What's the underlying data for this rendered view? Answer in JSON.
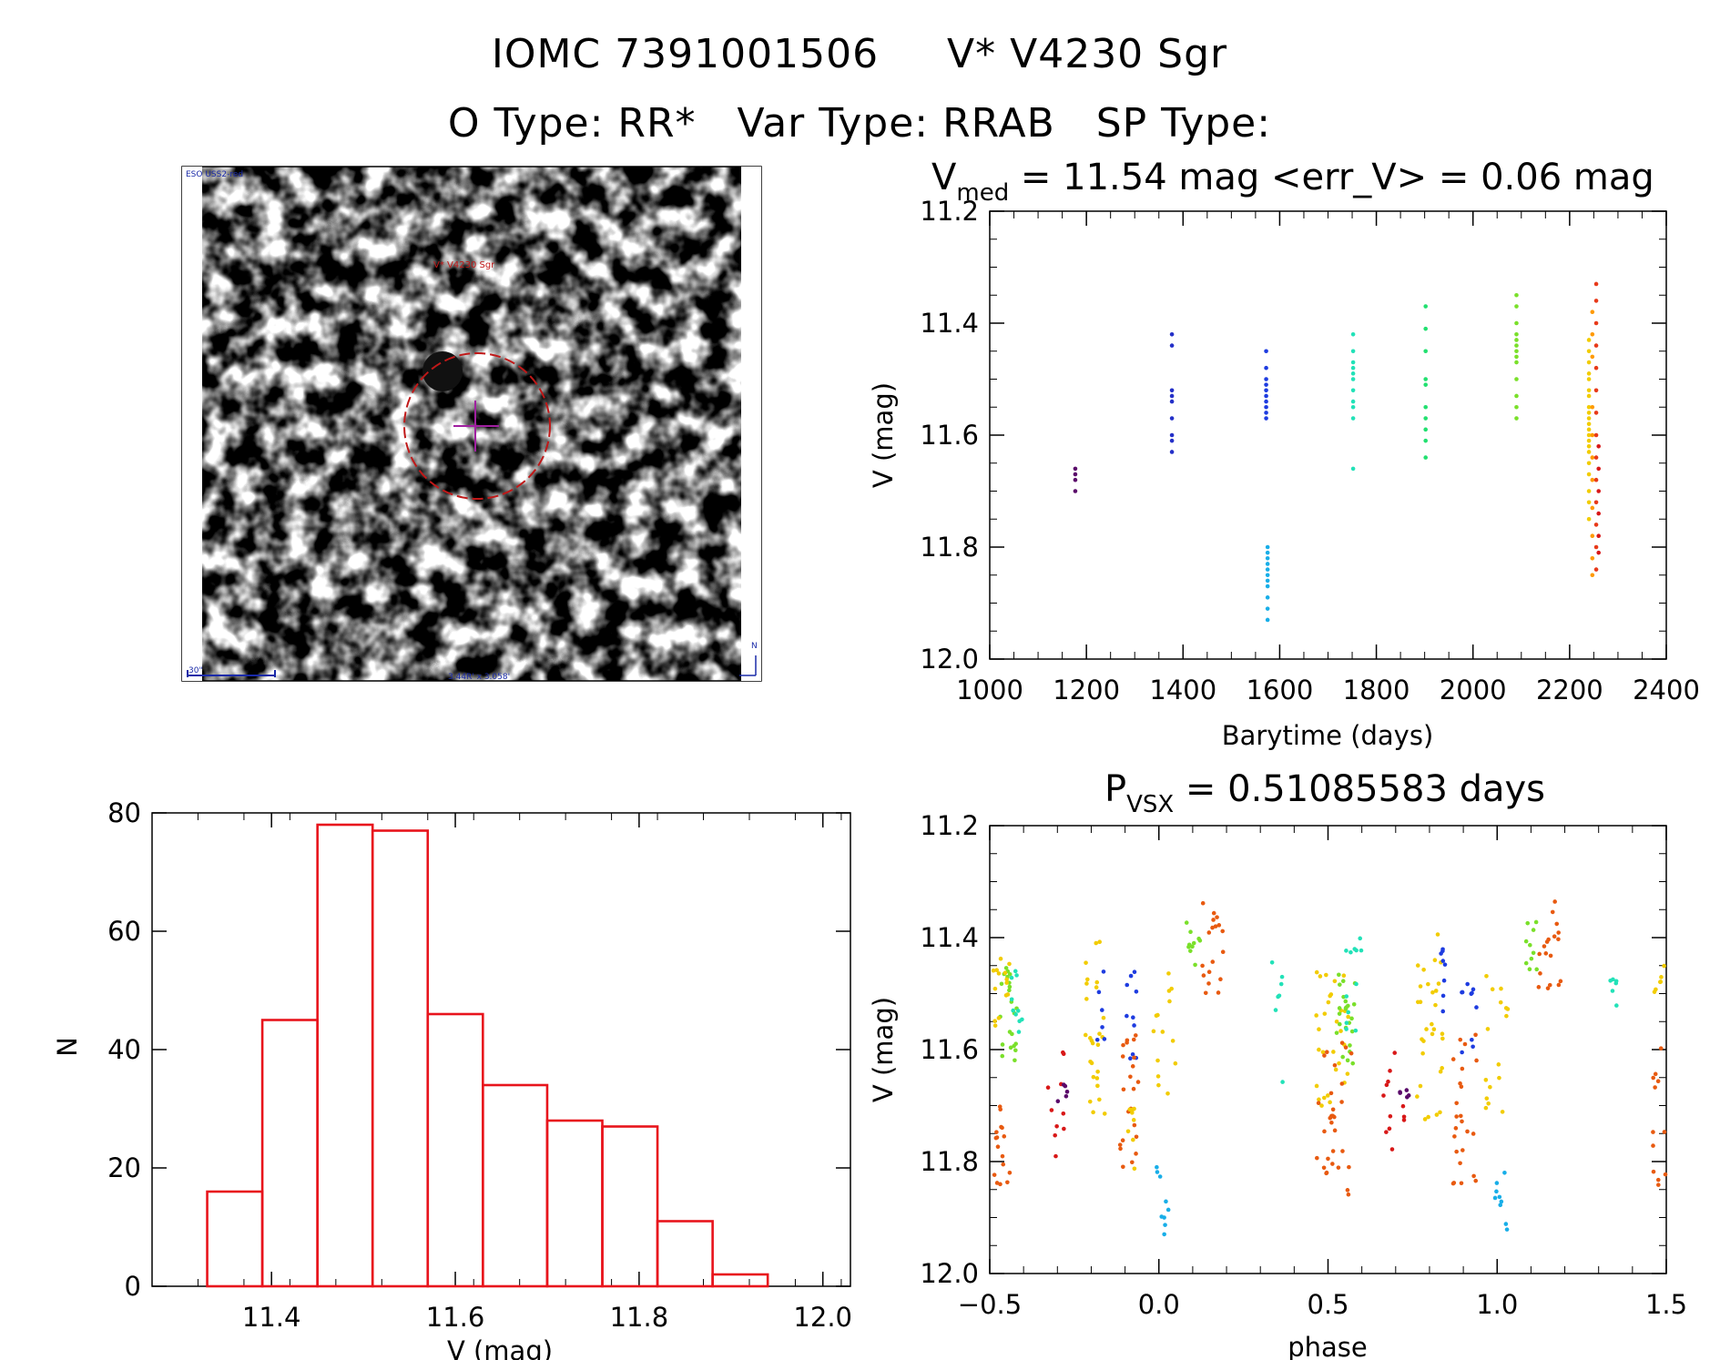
{
  "header": {
    "title_line1": "IOMC 7391001506     V* V4230 Sgr",
    "title_line2": "O Type: RR*   Var Type: RRAB   SP Type:"
  },
  "finder": {
    "survey_label": "ESO USS2-red",
    "target_label": "V* V4230 Sgr",
    "scale_label": "30\"",
    "fov_label": "3.44R' x 3.058'",
    "north_label": "N"
  },
  "chart_data": [
    {
      "type": "scatter",
      "name": "light-curve",
      "title_symbol": "V",
      "title_sub": "med",
      "title_rest": " = 11.54 mag <err_V> = 0.06 mag",
      "xlabel": "Barytime (days)",
      "ylabel": "V (mag)",
      "xlim": [
        1000,
        2400
      ],
      "ylim": [
        12.0,
        11.2
      ],
      "xticks": [
        "1000",
        "1200",
        "1400",
        "1600",
        "1800",
        "2000",
        "2200",
        "2400"
      ],
      "yticks": [
        "11.2",
        "11.4",
        "11.6",
        "11.8",
        "12.0"
      ],
      "groups": [
        {
          "t": 1177,
          "color": "#5a0a6a",
          "v": [
            11.66,
            11.67,
            11.68,
            11.7
          ]
        },
        {
          "t": 1377,
          "color": "#2430c8",
          "v": [
            11.42,
            11.44,
            11.52,
            11.53,
            11.54,
            11.57,
            11.6,
            11.61,
            11.63
          ]
        },
        {
          "t": 1572,
          "color": "#1e3ce0",
          "v": [
            11.45,
            11.48,
            11.5,
            11.51,
            11.52,
            11.53,
            11.54,
            11.55,
            11.56,
            11.57
          ]
        },
        {
          "t": 1575,
          "color": "#18aee8",
          "v": [
            11.8,
            11.81,
            11.82,
            11.83,
            11.84,
            11.85,
            11.86,
            11.87,
            11.89,
            11.91,
            11.93
          ]
        },
        {
          "t": 1752,
          "color": "#22e2b8",
          "v": [
            11.42,
            11.45,
            11.47,
            11.48,
            11.49,
            11.5,
            11.52,
            11.54,
            11.55,
            11.57,
            11.66
          ]
        },
        {
          "t": 1902,
          "color": "#22e070",
          "v": [
            11.37,
            11.41,
            11.45,
            11.5,
            11.51,
            11.55,
            11.57,
            11.59,
            11.61,
            11.64
          ]
        },
        {
          "t": 2090,
          "color": "#7ae02a",
          "v": [
            11.35,
            11.37,
            11.4,
            11.42,
            11.43,
            11.44,
            11.45,
            11.46,
            11.47,
            11.5,
            11.53,
            11.55,
            11.57
          ]
        },
        {
          "t": 2240,
          "color": "#f2cc00",
          "v": [
            11.43,
            11.45,
            11.47,
            11.49,
            11.5,
            11.52,
            11.53,
            11.55,
            11.56,
            11.57,
            11.58,
            11.59,
            11.6,
            11.61,
            11.62,
            11.63,
            11.65,
            11.67,
            11.7,
            11.72,
            11.75
          ]
        },
        {
          "t": 2247,
          "color": "#ff9a00",
          "v": [
            11.38,
            11.42,
            11.46,
            11.55,
            11.6,
            11.64,
            11.68,
            11.73,
            11.78,
            11.82,
            11.85
          ]
        },
        {
          "t": 2255,
          "color": "#e83a1a",
          "v": [
            11.33,
            11.36,
            11.4,
            11.44,
            11.48,
            11.52,
            11.56,
            11.6,
            11.64,
            11.68,
            11.72,
            11.76,
            11.8,
            11.84
          ]
        },
        {
          "t": 2260,
          "color": "#d81818",
          "v": [
            11.62,
            11.66,
            11.7,
            11.74,
            11.78,
            11.81
          ]
        }
      ]
    },
    {
      "type": "bar",
      "name": "histogram",
      "xlabel": "V (mag)",
      "ylabel": "N",
      "xlim": [
        11.27,
        12.03
      ],
      "ylim": [
        0,
        80
      ],
      "xticks": [
        "11.4",
        "11.6",
        "11.8",
        "12.0"
      ],
      "yticks": [
        "0",
        "20",
        "40",
        "60",
        "80"
      ],
      "bin_edges": [
        11.33,
        11.39,
        11.45,
        11.51,
        11.57,
        11.63,
        11.7,
        11.76,
        11.82,
        11.88,
        11.94
      ],
      "values": [
        16,
        45,
        78,
        77,
        46,
        34,
        28,
        27,
        11,
        2
      ],
      "color": "#e8141c"
    },
    {
      "type": "scatter",
      "name": "phased-curve",
      "title_symbol": "P",
      "title_sub": "VSX",
      "title_rest": " = 0.51085583 days",
      "xlabel": "phase",
      "ylabel": "V (mag)",
      "xlim": [
        -0.5,
        1.5
      ],
      "ylim": [
        12.0,
        11.2
      ],
      "xticks": [
        "−0.5",
        "0.0",
        "0.5",
        "1.0",
        "1.5"
      ],
      "yticks": [
        "11.2",
        "11.4",
        "11.6",
        "11.8",
        "12.0"
      ],
      "clusters": [
        {
          "color": "#7ae02a",
          "phase": [
            -0.47,
            -0.42
          ],
          "mag": [
            11.45,
            11.62
          ],
          "n": 22
        },
        {
          "color": "#f2cc00",
          "phase": [
            -0.49,
            -0.44
          ],
          "mag": [
            11.42,
            11.56
          ],
          "n": 14
        },
        {
          "color": "#22e2b8",
          "phase": [
            -0.44,
            -0.4
          ],
          "mag": [
            11.44,
            11.57
          ],
          "n": 10
        },
        {
          "color": "#e85a10",
          "phase": [
            -0.49,
            -0.44
          ],
          "mag": [
            11.7,
            11.85
          ],
          "n": 16
        },
        {
          "color": "#d81818",
          "phase": [
            -0.33,
            -0.28
          ],
          "mag": [
            11.6,
            11.8
          ],
          "n": 10
        },
        {
          "color": "#5a0a6a",
          "phase": [
            -0.3,
            -0.26
          ],
          "mag": [
            11.65,
            11.7
          ],
          "n": 5
        },
        {
          "color": "#f2cc00",
          "phase": [
            -0.22,
            -0.16
          ],
          "mag": [
            11.4,
            11.72
          ],
          "n": 26
        },
        {
          "color": "#1e3ce0",
          "phase": [
            -0.19,
            -0.16
          ],
          "mag": [
            11.43,
            11.62
          ],
          "n": 6
        },
        {
          "color": "#1e3ce0",
          "phase": [
            -0.1,
            -0.06
          ],
          "mag": [
            11.46,
            11.62
          ],
          "n": 10
        },
        {
          "color": "#e85a10",
          "phase": [
            -0.12,
            -0.06
          ],
          "mag": [
            11.55,
            11.82
          ],
          "n": 22
        },
        {
          "color": "#f2cc00",
          "phase": [
            -0.1,
            -0.07
          ],
          "mag": [
            11.7,
            11.84
          ],
          "n": 8
        },
        {
          "color": "#f2cc00",
          "phase": [
            -0.02,
            0.05
          ],
          "mag": [
            11.45,
            11.68
          ],
          "n": 14
        },
        {
          "color": "#18aee8",
          "phase": [
            -0.01,
            0.03
          ],
          "mag": [
            11.8,
            11.93
          ],
          "n": 9
        },
        {
          "color": "#7ae02a",
          "phase": [
            0.08,
            0.13
          ],
          "mag": [
            11.37,
            11.46
          ],
          "n": 10
        },
        {
          "color": "#e85a10",
          "phase": [
            0.12,
            0.19
          ],
          "mag": [
            11.33,
            11.5
          ],
          "n": 18
        },
        {
          "color": "#22e2b8",
          "phase": [
            0.33,
            0.37
          ],
          "mag": [
            11.44,
            11.53
          ],
          "n": 6
        },
        {
          "color": "#22e2b8",
          "phase": [
            0.36,
            0.38
          ],
          "mag": [
            11.65,
            11.66
          ],
          "n": 1
        },
        {
          "color": "#f2cc00",
          "phase": [
            0.46,
            0.56
          ],
          "mag": [
            11.45,
            11.72
          ],
          "n": 30
        },
        {
          "color": "#7ae02a",
          "phase": [
            0.51,
            0.58
          ],
          "mag": [
            11.45,
            11.64
          ],
          "n": 24
        },
        {
          "color": "#22e2b8",
          "phase": [
            0.54,
            0.6
          ],
          "mag": [
            11.4,
            11.58
          ],
          "n": 12
        },
        {
          "color": "#e85a10",
          "phase": [
            0.46,
            0.57
          ],
          "mag": [
            11.56,
            11.86
          ],
          "n": 30
        },
        {
          "color": "#d81818",
          "phase": [
            0.66,
            0.73
          ],
          "mag": [
            11.6,
            11.8
          ],
          "n": 12
        },
        {
          "color": "#5a0a6a",
          "phase": [
            0.7,
            0.74
          ],
          "mag": [
            11.65,
            11.7
          ],
          "n": 5
        },
        {
          "color": "#f2cc00",
          "phase": [
            0.76,
            0.84
          ],
          "mag": [
            11.38,
            11.74
          ],
          "n": 30
        },
        {
          "color": "#1e3ce0",
          "phase": [
            0.81,
            0.85
          ],
          "mag": [
            11.42,
            11.62
          ],
          "n": 8
        },
        {
          "color": "#1e3ce0",
          "phase": [
            0.89,
            0.94
          ],
          "mag": [
            11.46,
            11.62
          ],
          "n": 10
        },
        {
          "color": "#e85a10",
          "phase": [
            0.87,
            0.94
          ],
          "mag": [
            11.55,
            11.84
          ],
          "n": 24
        },
        {
          "color": "#f2cc00",
          "phase": [
            0.96,
            1.05
          ],
          "mag": [
            11.46,
            11.72
          ],
          "n": 16
        },
        {
          "color": "#18aee8",
          "phase": [
            0.99,
            1.03
          ],
          "mag": [
            11.8,
            11.93
          ],
          "n": 9
        },
        {
          "color": "#7ae02a",
          "phase": [
            1.08,
            1.13
          ],
          "mag": [
            11.37,
            11.46
          ],
          "n": 10
        },
        {
          "color": "#e85a10",
          "phase": [
            1.12,
            1.19
          ],
          "mag": [
            11.33,
            11.5
          ],
          "n": 18
        },
        {
          "color": "#22e2b8",
          "phase": [
            1.33,
            1.37
          ],
          "mag": [
            11.44,
            11.53
          ],
          "n": 6
        },
        {
          "color": "#f2cc00",
          "phase": [
            1.46,
            1.5
          ],
          "mag": [
            11.45,
            11.52
          ],
          "n": 6
        },
        {
          "color": "#e85a10",
          "phase": [
            1.46,
            1.5
          ],
          "mag": [
            11.58,
            11.86
          ],
          "n": 12
        }
      ]
    }
  ]
}
